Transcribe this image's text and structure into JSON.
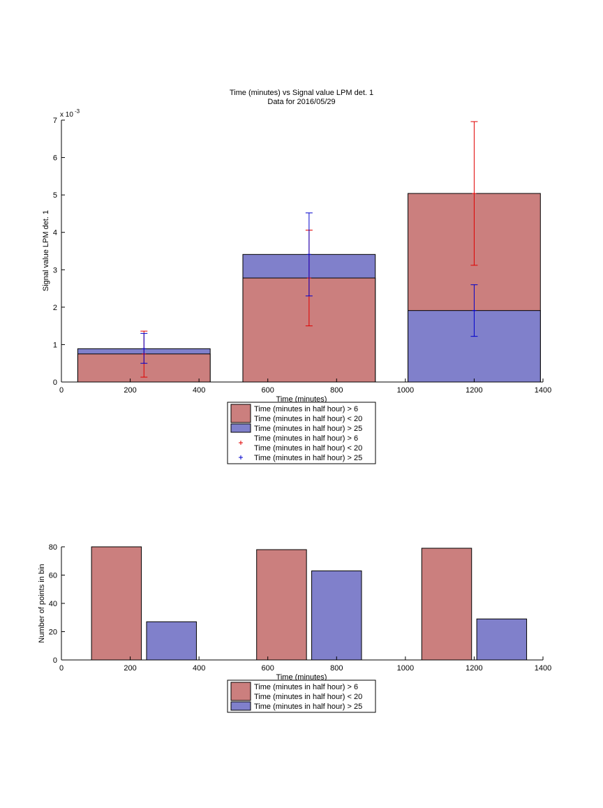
{
  "chart_data": [
    {
      "type": "bar",
      "title": "Time (minutes) vs Signal value LPM det. 1",
      "subtitle": "Data for 2016/05/29",
      "xlabel": "Time (minutes)",
      "ylabel": "Signal value LPM det. 1",
      "y_exponent_label": "x 10",
      "y_exponent_power": "-3",
      "xlim": [
        0,
        1400
      ],
      "ylim": [
        0,
        7
      ],
      "x_ticks": [
        0,
        200,
        400,
        600,
        800,
        1000,
        1200,
        1400
      ],
      "y_ticks": [
        0,
        1,
        2,
        3,
        4,
        5,
        6,
        7
      ],
      "y_scale_note": "values in units of 1e-3",
      "categories": [
        240,
        720,
        1200
      ],
      "bar_width_minutes": 385,
      "overlay": true,
      "series": [
        {
          "name": "Time (minutes in half hour) > 6\nTime (minutes in half hour) < 20",
          "label_lines": [
            "Time (minutes in half hour) > 6",
            "Time (minutes in half hour) < 20"
          ],
          "color": "#cb7f7e",
          "error_color": "#e00000",
          "values": [
            0.75,
            2.78,
            5.04
          ],
          "error_low": [
            0.13,
            1.5,
            3.12
          ],
          "error_high": [
            1.36,
            4.06,
            6.96
          ]
        },
        {
          "name": "Time (minutes in half hour) > 25",
          "label_lines": [
            "Time (minutes in half hour) > 25"
          ],
          "color": "#8080cb",
          "error_color": "#0000cc",
          "values": [
            0.89,
            3.41,
            1.91
          ],
          "error_low": [
            0.5,
            2.3,
            1.22
          ],
          "error_high": [
            1.3,
            4.52,
            2.6
          ]
        }
      ],
      "legend": {
        "placement": "below",
        "entries": [
          {
            "kind": "patch",
            "series": 0,
            "lines": [
              "Time (minutes in half hour) > 6",
              "Time (minutes in half hour) < 20"
            ]
          },
          {
            "kind": "patch",
            "series": 1,
            "lines": [
              "Time (minutes in half hour) > 25"
            ]
          },
          {
            "kind": "marker",
            "series": 0,
            "lines": [
              "Time (minutes in half hour) > 6",
              "Time (minutes in half hour) < 20"
            ]
          },
          {
            "kind": "marker",
            "series": 1,
            "lines": [
              "Time (minutes in half hour) > 25"
            ]
          }
        ]
      }
    },
    {
      "type": "bar",
      "xlabel": "Time (minutes)",
      "ylabel": "Number of points in bin",
      "xlim": [
        0,
        1400
      ],
      "ylim": [
        0,
        80
      ],
      "x_ticks": [
        0,
        200,
        400,
        600,
        800,
        1000,
        1200,
        1400
      ],
      "y_ticks": [
        0,
        20,
        40,
        60,
        80
      ],
      "categories": [
        240,
        720,
        1200
      ],
      "bar_width_minutes": 145,
      "bar_offset_minutes": 80,
      "series": [
        {
          "name": "Time (minutes in half hour) > 6\nTime (minutes in half hour) < 20",
          "color": "#cb7f7e",
          "values": [
            80,
            78,
            79
          ]
        },
        {
          "name": "Time (minutes in half hour) > 25",
          "color": "#8080cb",
          "values": [
            27,
            63,
            29
          ]
        }
      ],
      "legend": {
        "placement": "below",
        "entries": [
          {
            "kind": "patch",
            "series": 0,
            "lines": [
              "Time (minutes in half hour) > 6",
              "Time (minutes in half hour) < 20"
            ]
          },
          {
            "kind": "patch",
            "series": 1,
            "lines": [
              "Time (minutes in half hour) > 25"
            ]
          }
        ]
      }
    }
  ]
}
